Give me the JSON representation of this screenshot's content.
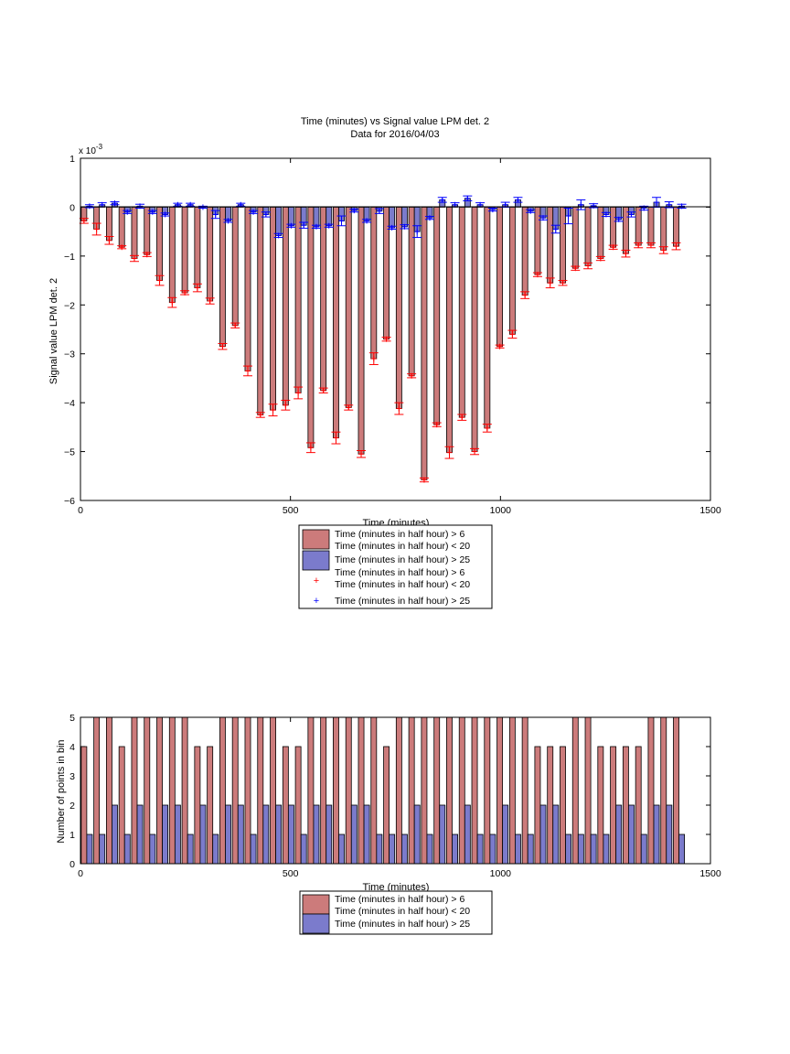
{
  "colors": {
    "series_red": "#cc7b7b",
    "series_blue": "#7b7bcc",
    "marker_red": "#ff0000",
    "marker_blue": "#0000ff"
  },
  "chart_data": [
    {
      "type": "bar",
      "title": "Time (minutes) vs Signal value LPM det. 2",
      "subtitle": "Data for 2016/04/03",
      "xlabel": "Time (minutes)",
      "ylabel": "Signal value LPM det. 2",
      "y_multiplier": "x 10",
      "y_exponent": "-3",
      "xlim": [
        0,
        1500
      ],
      "ylim": [
        -6,
        1
      ],
      "xticks": [
        "0",
        "500",
        "1000",
        "1500"
      ],
      "yticks": [
        "1",
        "0",
        "−1",
        "−2",
        "−3",
        "−4",
        "−5",
        "−6"
      ],
      "legend_placement": "below",
      "legend": [
        {
          "label": "Time (minutes in half hour) > 6\nTime (minutes in half hour) < 20",
          "kind": "bar",
          "color": "#cc7b7b"
        },
        {
          "label": "Time (minutes in half hour) > 25",
          "kind": "bar",
          "color": "#7b7bcc"
        },
        {
          "label": "Time (minutes in half hour) > 6\nTime (minutes in half hour) < 20",
          "kind": "marker",
          "color": "#ff0000"
        },
        {
          "label": "Time (minutes in half hour) > 25",
          "kind": "marker",
          "color": "#0000ff"
        }
      ],
      "x": [
        15,
        45,
        75,
        105,
        135,
        165,
        195,
        225,
        255,
        285,
        315,
        345,
        375,
        405,
        435,
        465,
        495,
        525,
        555,
        585,
        615,
        645,
        675,
        705,
        735,
        765,
        795,
        825,
        855,
        885,
        915,
        945,
        975,
        1005,
        1035,
        1065,
        1095,
        1125,
        1155,
        1185,
        1215,
        1245,
        1275,
        1305,
        1335,
        1365,
        1395,
        1425
      ],
      "series": [
        {
          "name": "Time (minutes in half hour) > 6\nTime (minutes in half hour) < 20",
          "values": [
            -0.28,
            -0.45,
            -0.68,
            -0.82,
            -1.05,
            -0.97,
            -1.5,
            -1.95,
            -1.75,
            -1.65,
            -1.92,
            -2.85,
            -2.42,
            -3.35,
            -4.25,
            -4.15,
            -4.05,
            -3.8,
            -4.92,
            -3.75,
            -4.72,
            -4.1,
            -5.05,
            -3.1,
            -2.7,
            -4.12,
            -3.45,
            -5.58,
            -4.45,
            -5.02,
            -4.3,
            -5.0,
            -4.52,
            -2.85,
            -2.6,
            -1.8,
            -1.38,
            -1.55,
            -1.55,
            -1.25,
            -1.2,
            -1.05,
            -0.82,
            -0.95,
            -0.78,
            -0.78,
            -0.88,
            -0.8
          ],
          "errors": [
            0.05,
            0.12,
            0.08,
            0.03,
            0.06,
            0.04,
            0.1,
            0.1,
            0.04,
            0.08,
            0.06,
            0.06,
            0.05,
            0.1,
            0.05,
            0.12,
            0.1,
            0.12,
            0.1,
            0.05,
            0.12,
            0.05,
            0.07,
            0.12,
            0.04,
            0.12,
            0.04,
            0.04,
            0.04,
            0.12,
            0.06,
            0.06,
            0.08,
            0.03,
            0.08,
            0.07,
            0.04,
            0.1,
            0.05,
            0.04,
            0.06,
            0.04,
            0.04,
            0.07,
            0.05,
            0.05,
            0.07,
            0.07
          ]
        },
        {
          "name": "Time (minutes in half hour) > 25",
          "values": [
            0.02,
            0.05,
            0.08,
            -0.1,
            0.02,
            -0.1,
            -0.15,
            0.05,
            0.05,
            0.0,
            -0.15,
            -0.28,
            0.05,
            -0.1,
            -0.15,
            -0.58,
            -0.38,
            -0.37,
            -0.4,
            -0.38,
            -0.28,
            -0.07,
            -0.28,
            -0.08,
            -0.42,
            -0.4,
            -0.5,
            -0.22,
            0.15,
            0.05,
            0.18,
            0.05,
            -0.05,
            0.05,
            0.15,
            -0.08,
            -0.22,
            -0.45,
            -0.18,
            0.05,
            0.03,
            -0.15,
            -0.25,
            -0.15,
            -0.02,
            0.1,
            0.05,
            0.02
          ],
          "errors": [
            0.03,
            0.04,
            0.03,
            0.03,
            0.04,
            0.03,
            0.03,
            0.03,
            0.03,
            0.02,
            0.08,
            0.03,
            0.03,
            0.03,
            0.05,
            0.04,
            0.03,
            0.06,
            0.03,
            0.03,
            0.1,
            0.03,
            0.03,
            0.05,
            0.03,
            0.04,
            0.12,
            0.03,
            0.05,
            0.04,
            0.05,
            0.04,
            0.03,
            0.05,
            0.05,
            0.03,
            0.04,
            0.08,
            0.16,
            0.1,
            0.04,
            0.04,
            0.04,
            0.05,
            0.04,
            0.1,
            0.06,
            0.04
          ]
        }
      ]
    },
    {
      "type": "bar",
      "xlabel": "Time (minutes)",
      "ylabel": "Number of points in bin",
      "xlim": [
        0,
        1500
      ],
      "ylim": [
        0,
        5
      ],
      "xticks": [
        "0",
        "500",
        "1000",
        "1500"
      ],
      "yticks": [
        "5",
        "4",
        "3",
        "2",
        "1",
        "0"
      ],
      "legend_placement": "below",
      "legend": [
        {
          "label": "Time (minutes in half hour) > 6\nTime (minutes in half hour) < 20",
          "kind": "bar",
          "color": "#cc7b7b"
        },
        {
          "label": "Time (minutes in half hour) > 25",
          "kind": "bar",
          "color": "#7b7bcc"
        }
      ],
      "x": [
        15,
        45,
        75,
        105,
        135,
        165,
        195,
        225,
        255,
        285,
        315,
        345,
        375,
        405,
        435,
        465,
        495,
        525,
        555,
        585,
        615,
        645,
        675,
        705,
        735,
        765,
        795,
        825,
        855,
        885,
        915,
        945,
        975,
        1005,
        1035,
        1065,
        1095,
        1125,
        1155,
        1185,
        1215,
        1245,
        1275,
        1305,
        1335,
        1365,
        1395,
        1425
      ],
      "series": [
        {
          "name": "Time (minutes in half hour) > 6\nTime (minutes in half hour) < 20",
          "values": [
            4,
            5,
            5,
            4,
            5,
            5,
            5,
            5,
            5,
            4,
            4,
            5,
            5,
            5,
            5,
            5,
            4,
            4,
            5,
            5,
            5,
            5,
            5,
            5,
            4,
            5,
            5,
            5,
            5,
            5,
            5,
            5,
            5,
            5,
            5,
            5,
            4,
            4,
            4,
            5,
            5,
            4,
            4,
            4,
            4,
            5,
            5,
            5
          ]
        },
        {
          "name": "Time (minutes in half hour) > 25",
          "values": [
            1,
            1,
            2,
            1,
            2,
            1,
            2,
            2,
            1,
            2,
            1,
            2,
            2,
            1,
            2,
            2,
            2,
            1,
            2,
            2,
            1,
            2,
            2,
            1,
            1,
            1,
            2,
            1,
            2,
            1,
            2,
            1,
            1,
            2,
            1,
            1,
            2,
            2,
            1,
            1,
            1,
            1,
            2,
            2,
            1,
            2,
            2,
            1
          ]
        }
      ]
    }
  ]
}
